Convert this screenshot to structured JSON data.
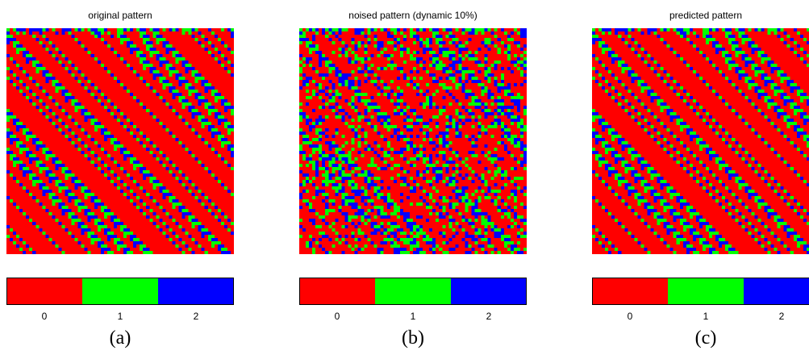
{
  "colors": {
    "state_0": "#ff0000",
    "state_1": "#00ff00",
    "state_2": "#0000ff"
  },
  "colorbar": {
    "ticks": [
      "0",
      "1",
      "2"
    ]
  },
  "panels": [
    {
      "title": "original pattern",
      "caption": "(a)",
      "noise_fraction": 0.0
    },
    {
      "title": "noised pattern (dynamic 10%)",
      "caption": "(b)",
      "noise_fraction": 0.1
    },
    {
      "title": "predicted pattern",
      "caption": "(c)",
      "noise_fraction": 0.0
    }
  ]
}
